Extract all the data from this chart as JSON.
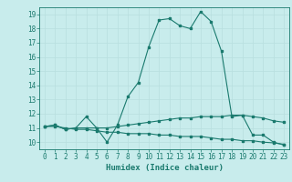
{
  "xlabel": "Humidex (Indice chaleur)",
  "bg_color": "#c8ecec",
  "line_color": "#1a7a6e",
  "grid_color": "#b8dede",
  "ylim": [
    9.5,
    19.5
  ],
  "xlim": [
    -0.5,
    23.5
  ],
  "yticks": [
    10,
    11,
    12,
    13,
    14,
    15,
    16,
    17,
    18,
    19
  ],
  "xticks": [
    0,
    1,
    2,
    3,
    4,
    5,
    6,
    7,
    8,
    9,
    10,
    11,
    12,
    13,
    14,
    15,
    16,
    17,
    18,
    19,
    20,
    21,
    22,
    23
  ],
  "curve1_x": [
    0,
    1,
    2,
    3,
    4,
    5,
    6,
    7,
    8,
    9,
    10,
    11,
    12,
    13,
    14,
    15,
    16,
    17,
    18,
    19,
    20,
    21,
    22,
    23
  ],
  "curve1_y": [
    11.1,
    11.2,
    10.9,
    11.0,
    11.8,
    11.0,
    10.0,
    11.2,
    13.2,
    14.2,
    16.7,
    18.6,
    18.7,
    18.2,
    18.0,
    19.2,
    18.5,
    16.4,
    11.8,
    11.9,
    10.5,
    10.5,
    10.0,
    9.8
  ],
  "curve2_x": [
    0,
    1,
    2,
    3,
    4,
    5,
    6,
    7,
    8,
    9,
    10,
    11,
    12,
    13,
    14,
    15,
    16,
    17,
    18,
    19,
    20,
    21,
    22,
    23
  ],
  "curve2_y": [
    11.1,
    11.2,
    10.9,
    11.0,
    11.0,
    11.0,
    11.0,
    11.1,
    11.2,
    11.3,
    11.4,
    11.5,
    11.6,
    11.7,
    11.7,
    11.8,
    11.8,
    11.8,
    11.9,
    11.9,
    11.8,
    11.7,
    11.5,
    11.4
  ],
  "curve3_x": [
    0,
    1,
    2,
    3,
    4,
    5,
    6,
    7,
    8,
    9,
    10,
    11,
    12,
    13,
    14,
    15,
    16,
    17,
    18,
    19,
    20,
    21,
    22,
    23
  ],
  "curve3_y": [
    11.1,
    11.1,
    11.0,
    10.9,
    10.9,
    10.8,
    10.7,
    10.7,
    10.6,
    10.6,
    10.6,
    10.5,
    10.5,
    10.4,
    10.4,
    10.4,
    10.3,
    10.2,
    10.2,
    10.1,
    10.1,
    10.0,
    9.95,
    9.85
  ],
  "tick_fontsize": 5.5,
  "xlabel_fontsize": 6.5
}
